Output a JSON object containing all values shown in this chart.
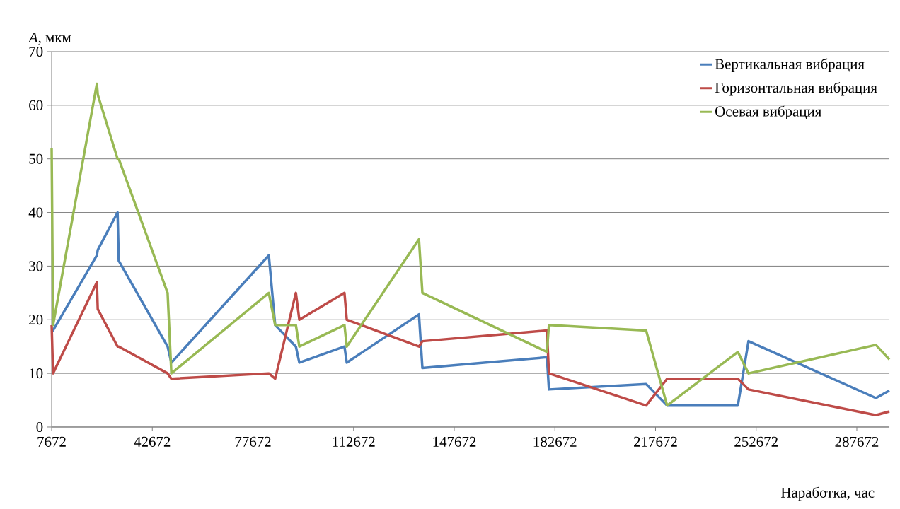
{
  "chart_data": {
    "type": "line",
    "xlabel": "Наработка, час",
    "ylabel": "*A*, мкм",
    "x": [
      7672,
      8160,
      23400,
      23700,
      30600,
      31000,
      48000,
      49300,
      83200,
      85400,
      92600,
      93800,
      109500,
      110300,
      135400,
      136600,
      179900,
      180600,
      214400,
      221700,
      246300,
      250000,
      294300,
      299000
    ],
    "series": [
      {
        "name": "Вертикальная вибрация",
        "color": "#4a7ebb",
        "values": [
          18,
          18,
          32,
          33,
          40,
          31,
          15,
          12,
          32,
          19,
          15,
          12,
          15,
          12,
          21,
          11,
          13,
          7,
          8,
          4,
          4,
          16,
          5.4,
          6.8
        ]
      },
      {
        "name": "Горизонтальная вибрация",
        "color": "#be4b48",
        "values": [
          19,
          10,
          27,
          22,
          15,
          15,
          10,
          9,
          10,
          9,
          25,
          20,
          25,
          20,
          15,
          16,
          18,
          10,
          4,
          9,
          9,
          7,
          2.2,
          2.9
        ]
      },
      {
        "name": "Осевая вибрация",
        "color": "#98b954",
        "values": [
          52,
          19,
          64,
          62,
          50,
          50,
          25,
          10,
          25,
          19,
          19,
          15,
          19,
          15,
          35,
          25,
          14,
          19,
          18,
          4,
          14,
          10,
          15.3,
          12.6
        ]
      }
    ],
    "xlim": [
      7672,
      299000
    ],
    "ylim": [
      0,
      70
    ],
    "xticks": [
      7672,
      42672,
      77672,
      112672,
      147672,
      182672,
      217672,
      252672,
      287672
    ],
    "yticks": [
      0,
      10,
      20,
      30,
      40,
      50,
      60,
      70
    ],
    "grid": "y",
    "legend": "top right",
    "marker": "none",
    "line_style": "solid"
  }
}
